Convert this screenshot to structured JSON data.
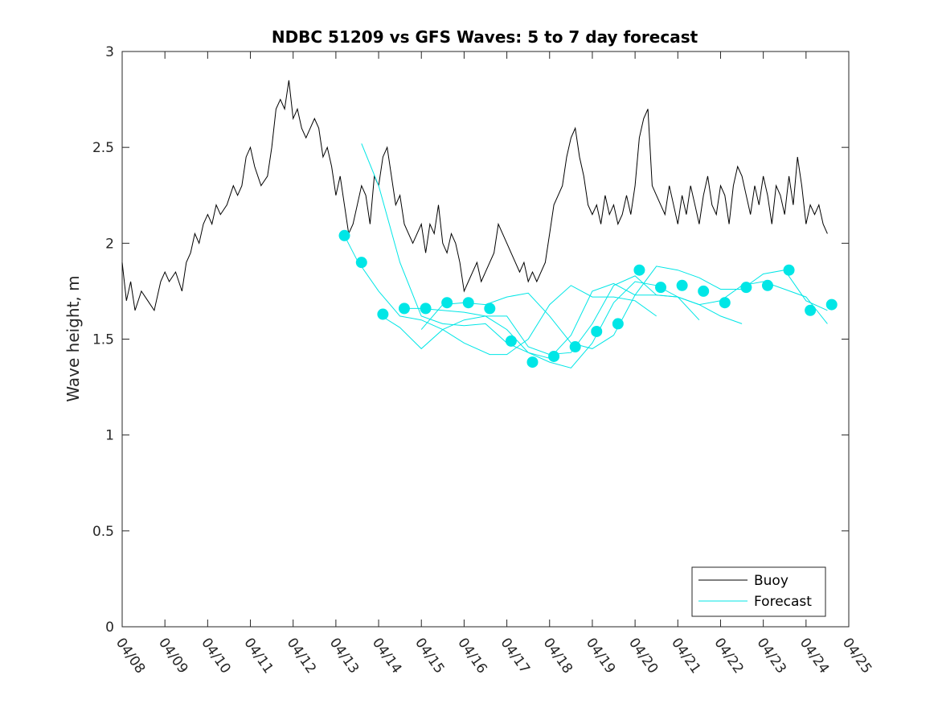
{
  "chart_data": {
    "type": "line",
    "title": "NDBC 51209 vs GFS Waves: 5 to 7 day forecast",
    "xlabel": "",
    "ylabel": "Wave height, m",
    "ylim": [
      0,
      3
    ],
    "yticks": [
      "0",
      "0.5",
      "1",
      "1.5",
      "2",
      "2.5",
      "3"
    ],
    "yticks_values": [
      0,
      0.5,
      1,
      1.5,
      2,
      2.5,
      3
    ],
    "xlim_days": [
      "04/08",
      "04/25"
    ],
    "xticks": [
      "04/08",
      "04/09",
      "04/10",
      "04/11",
      "04/12",
      "04/13",
      "04/14",
      "04/15",
      "04/16",
      "04/17",
      "04/18",
      "04/19",
      "04/20",
      "04/21",
      "04/22",
      "04/23",
      "04/24",
      "04/25"
    ],
    "grid": false,
    "legend_position": "bottom-right",
    "colors": {
      "buoy": "#000000",
      "forecast": "#00e6e6"
    },
    "series": [
      {
        "name": "Buoy",
        "style": "line",
        "color": "#000000",
        "x_label": "date (04/08 + days)",
        "x": [
          0.0,
          0.1,
          0.2,
          0.3,
          0.45,
          0.6,
          0.75,
          0.9,
          1.0,
          1.1,
          1.25,
          1.4,
          1.5,
          1.6,
          1.7,
          1.8,
          1.9,
          2.0,
          2.1,
          2.2,
          2.3,
          2.45,
          2.6,
          2.7,
          2.8,
          2.9,
          3.0,
          3.1,
          3.25,
          3.4,
          3.5,
          3.6,
          3.7,
          3.8,
          3.9,
          4.0,
          4.1,
          4.2,
          4.3,
          4.4,
          4.5,
          4.6,
          4.7,
          4.8,
          4.9,
          5.0,
          5.1,
          5.2,
          5.3,
          5.4,
          5.5,
          5.6,
          5.7,
          5.8,
          5.9,
          6.0,
          6.1,
          6.2,
          6.3,
          6.4,
          6.5,
          6.6,
          6.7,
          6.8,
          6.9,
          7.0,
          7.1,
          7.2,
          7.3,
          7.4,
          7.5,
          7.6,
          7.7,
          7.8,
          7.9,
          8.0,
          8.1,
          8.2,
          8.3,
          8.4,
          8.5,
          8.6,
          8.7,
          8.8,
          8.9,
          9.0,
          9.1,
          9.2,
          9.3,
          9.4,
          9.5,
          9.6,
          9.7,
          9.8,
          9.9,
          10.0,
          10.1,
          10.2,
          10.3,
          10.4,
          10.5,
          10.6,
          10.7,
          10.8,
          10.9,
          11.0,
          11.1,
          11.2,
          11.3,
          11.4,
          11.5,
          11.6,
          11.7,
          11.8,
          11.9,
          12.0,
          12.1,
          12.2,
          12.3,
          12.4,
          12.5,
          12.6,
          12.7,
          12.8,
          12.9,
          13.0,
          13.1,
          13.2,
          13.3,
          13.4,
          13.5,
          13.6,
          13.7,
          13.8,
          13.9,
          14.0,
          14.1,
          14.2,
          14.3,
          14.4,
          14.5,
          14.6,
          14.7,
          14.8,
          14.9,
          15.0,
          15.1,
          15.2,
          15.3,
          15.4,
          15.5,
          15.6,
          15.7,
          15.8,
          15.9,
          16.0,
          16.1,
          16.2,
          16.3,
          16.4,
          16.5
        ],
        "y": [
          1.9,
          1.7,
          1.8,
          1.65,
          1.75,
          1.7,
          1.65,
          1.8,
          1.85,
          1.8,
          1.85,
          1.75,
          1.9,
          1.95,
          2.05,
          2.0,
          2.1,
          2.15,
          2.1,
          2.2,
          2.15,
          2.2,
          2.3,
          2.25,
          2.3,
          2.45,
          2.5,
          2.4,
          2.3,
          2.35,
          2.5,
          2.7,
          2.75,
          2.7,
          2.85,
          2.65,
          2.7,
          2.6,
          2.55,
          2.6,
          2.65,
          2.6,
          2.45,
          2.5,
          2.4,
          2.25,
          2.35,
          2.2,
          2.05,
          2.1,
          2.2,
          2.3,
          2.25,
          2.1,
          2.35,
          2.3,
          2.45,
          2.5,
          2.35,
          2.2,
          2.25,
          2.1,
          2.05,
          2.0,
          2.05,
          2.1,
          1.95,
          2.1,
          2.05,
          2.2,
          2.0,
          1.95,
          2.05,
          2.0,
          1.9,
          1.75,
          1.8,
          1.85,
          1.9,
          1.8,
          1.85,
          1.9,
          1.95,
          2.1,
          2.05,
          2.0,
          1.95,
          1.9,
          1.85,
          1.9,
          1.8,
          1.85,
          1.8,
          1.85,
          1.9,
          2.05,
          2.2,
          2.25,
          2.3,
          2.45,
          2.55,
          2.6,
          2.45,
          2.35,
          2.2,
          2.15,
          2.2,
          2.1,
          2.25,
          2.15,
          2.2,
          2.1,
          2.15,
          2.25,
          2.15,
          2.3,
          2.55,
          2.65,
          2.7,
          2.3,
          2.25,
          2.2,
          2.15,
          2.3,
          2.2,
          2.1,
          2.25,
          2.15,
          2.3,
          2.2,
          2.1,
          2.25,
          2.35,
          2.2,
          2.15,
          2.3,
          2.25,
          2.1,
          2.3,
          2.4,
          2.35,
          2.25,
          2.15,
          2.3,
          2.2,
          2.35,
          2.25,
          2.1,
          2.3,
          2.25,
          2.15,
          2.35,
          2.2,
          2.45,
          2.3,
          2.1,
          2.2,
          2.15,
          2.2,
          2.1,
          2.05
        ]
      },
      {
        "name": "Forecast",
        "style": "line",
        "color": "#00e6e6",
        "runs": [
          {
            "x": [
              5.2,
              5.5,
              6.0,
              6.5,
              7.0,
              7.5,
              8.0,
              8.6,
              9.0,
              9.5,
              10.0,
              10.5,
              11.0,
              11.5,
              12.0,
              12.5
            ],
            "y": [
              2.04,
              1.91,
              1.75,
              1.62,
              1.6,
              1.55,
              1.48,
              1.42,
              1.42,
              1.5,
              1.68,
              1.78,
              1.72,
              1.72,
              1.7,
              1.62
            ]
          },
          {
            "x": [
              5.6,
              6.0,
              6.5,
              7.0,
              7.5,
              8.0,
              8.5,
              9.0,
              9.5,
              10.0,
              10.5,
              11.0,
              11.5,
              12.0,
              12.5,
              13.0,
              13.5
            ],
            "y": [
              2.52,
              2.3,
              1.9,
              1.62,
              1.58,
              1.57,
              1.58,
              1.48,
              1.43,
              1.4,
              1.52,
              1.75,
              1.79,
              1.73,
              1.73,
              1.72,
              1.6
            ]
          },
          {
            "x": [
              6.0,
              6.5,
              7.0,
              7.5,
              8.0,
              8.5,
              9.0,
              9.5,
              10.0,
              10.5,
              11.0,
              11.5,
              12.0,
              12.5,
              13.0,
              13.5,
              14.0,
              14.5
            ],
            "y": [
              1.63,
              1.56,
              1.45,
              1.55,
              1.6,
              1.62,
              1.62,
              1.46,
              1.42,
              1.43,
              1.58,
              1.78,
              1.83,
              1.73,
              1.72,
              1.68,
              1.62,
              1.58
            ]
          },
          {
            "x": [
              6.5,
              7.0,
              7.5,
              8.0,
              8.5,
              9.0,
              9.5,
              10.0,
              10.5,
              11.0,
              11.5,
              12.0,
              12.5,
              13.0,
              13.5,
              14.0,
              14.5,
              15.0,
              15.5,
              16.0,
              16.5
            ],
            "y": [
              1.66,
              1.66,
              1.65,
              1.64,
              1.62,
              1.55,
              1.43,
              1.38,
              1.35,
              1.48,
              1.69,
              1.8,
              1.78,
              1.72,
              1.68,
              1.7,
              1.78,
              1.8,
              1.76,
              1.72,
              1.58
            ]
          },
          {
            "x": [
              7.0,
              7.5,
              8.0,
              8.5,
              9.0,
              9.5,
              10.0,
              10.5,
              11.0,
              11.5,
              12.0,
              12.5,
              13.0,
              13.5,
              14.0,
              14.5,
              15.0,
              15.5,
              16.0,
              16.5
            ],
            "y": [
              1.55,
              1.68,
              1.69,
              1.68,
              1.72,
              1.74,
              1.62,
              1.48,
              1.45,
              1.52,
              1.73,
              1.88,
              1.86,
              1.82,
              1.76,
              1.76,
              1.84,
              1.86,
              1.7,
              1.65
            ]
          }
        ],
        "markers": {
          "x": [
            5.2,
            5.6,
            6.1,
            6.6,
            7.1,
            7.6,
            8.1,
            8.6,
            9.1,
            9.6,
            10.1,
            10.6,
            11.1,
            11.6,
            12.1,
            12.6,
            13.1,
            13.6,
            14.1,
            14.6,
            15.1,
            15.6,
            16.1,
            16.6
          ],
          "y": [
            2.04,
            1.9,
            1.63,
            1.66,
            1.66,
            1.69,
            1.69,
            1.66,
            1.49,
            1.38,
            1.41,
            1.46,
            1.54,
            1.58,
            1.86,
            1.77,
            1.78,
            1.75,
            1.69,
            1.77,
            1.78,
            1.86,
            1.65,
            1.68
          ]
        }
      }
    ],
    "legend": [
      {
        "label": "Buoy",
        "color": "#000000"
      },
      {
        "label": "Forecast",
        "color": "#00e6e6"
      }
    ]
  }
}
